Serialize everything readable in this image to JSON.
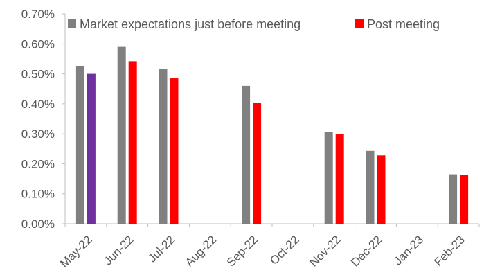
{
  "chart_data": {
    "type": "bar",
    "categories": [
      "May-22",
      "Jun-22",
      "Jul-22",
      "Aug-22",
      "Sep-22",
      "Oct-22",
      "Nov-22",
      "Dec-22",
      "Jan-23",
      "Feb-23"
    ],
    "series": [
      {
        "name": "Market expectations just before meeting",
        "color": "#808080",
        "values": [
          0.525,
          0.59,
          0.517,
          null,
          0.46,
          null,
          0.305,
          0.243,
          null,
          0.165
        ]
      },
      {
        "name": "Post meeting",
        "color": "#ff0000",
        "highlight_color": "#7030a0",
        "highlight_index": 0,
        "values": [
          0.5,
          0.542,
          0.485,
          null,
          0.402,
          null,
          0.3,
          0.228,
          null,
          0.163
        ]
      }
    ],
    "ylim": [
      0,
      0.7
    ],
    "yticks": [
      0.0,
      0.1,
      0.2,
      0.3,
      0.4,
      0.5,
      0.6,
      0.7
    ],
    "ytick_labels": [
      "0.00%",
      "0.10%",
      "0.20%",
      "0.30%",
      "0.40%",
      "0.50%",
      "0.60%",
      "0.70%"
    ],
    "grid": false,
    "legend_position": "top-right",
    "xtick_rotation": "-45deg"
  }
}
